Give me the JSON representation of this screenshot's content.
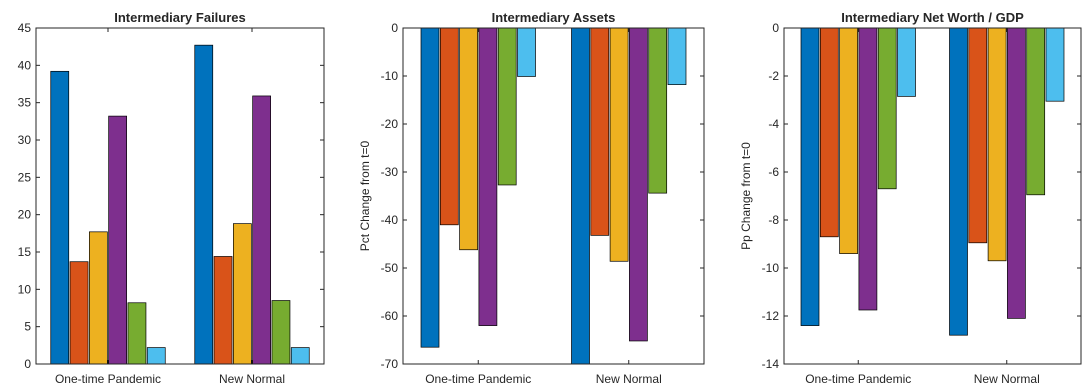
{
  "chart_data": [
    {
      "type": "bar",
      "title": "Intermediary Failures",
      "xlabel": "",
      "ylabel": "",
      "categories": [
        "One-time Pandemic",
        "New Normal"
      ],
      "ylim": [
        0,
        45
      ],
      "yticks": [
        0,
        5,
        10,
        15,
        20,
        25,
        30,
        35,
        40,
        45
      ],
      "grid": false,
      "series": [
        {
          "color": "#0072BD",
          "values": [
            39.2,
            42.7
          ]
        },
        {
          "color": "#D95319",
          "values": [
            13.7,
            14.4
          ]
        },
        {
          "color": "#EDB120",
          "values": [
            17.7,
            18.8
          ]
        },
        {
          "color": "#7E2F8E",
          "values": [
            33.2,
            35.9
          ]
        },
        {
          "color": "#77AC30",
          "values": [
            8.2,
            8.5
          ]
        },
        {
          "color": "#4DBEEE",
          "values": [
            2.2,
            2.2
          ]
        }
      ]
    },
    {
      "type": "bar",
      "title": "Intermediary Assets",
      "xlabel": "",
      "ylabel": "Pct Change from t=0",
      "categories": [
        "One-time Pandemic",
        "New Normal"
      ],
      "ylim": [
        -70,
        0
      ],
      "yticks": [
        -70,
        -60,
        -50,
        -40,
        -30,
        -20,
        -10,
        0
      ],
      "grid": false,
      "series": [
        {
          "color": "#0072BD",
          "values": [
            -66.5,
            -70.0
          ]
        },
        {
          "color": "#D95319",
          "values": [
            -41.0,
            -43.2
          ]
        },
        {
          "color": "#EDB120",
          "values": [
            -46.2,
            -48.6
          ]
        },
        {
          "color": "#7E2F8E",
          "values": [
            -62.0,
            -65.2
          ]
        },
        {
          "color": "#77AC30",
          "values": [
            -32.7,
            -34.4
          ]
        },
        {
          "color": "#4DBEEE",
          "values": [
            -10.1,
            -11.8
          ]
        }
      ]
    },
    {
      "type": "bar",
      "title": "Intermediary Net Worth / GDP",
      "xlabel": "",
      "ylabel": "Pp Change from t=0",
      "categories": [
        "One-time Pandemic",
        "New Normal"
      ],
      "ylim": [
        -14,
        0
      ],
      "yticks": [
        -14,
        -12,
        -10,
        -8,
        -6,
        -4,
        -2,
        0
      ],
      "grid": false,
      "series": [
        {
          "color": "#0072BD",
          "values": [
            -12.4,
            -12.8
          ]
        },
        {
          "color": "#D95319",
          "values": [
            -8.7,
            -8.95
          ]
        },
        {
          "color": "#EDB120",
          "values": [
            -9.4,
            -9.7
          ]
        },
        {
          "color": "#7E2F8E",
          "values": [
            -11.75,
            -12.1
          ]
        },
        {
          "color": "#77AC30",
          "values": [
            -6.7,
            -6.95
          ]
        },
        {
          "color": "#4DBEEE",
          "values": [
            -2.85,
            -3.05
          ]
        }
      ]
    }
  ]
}
